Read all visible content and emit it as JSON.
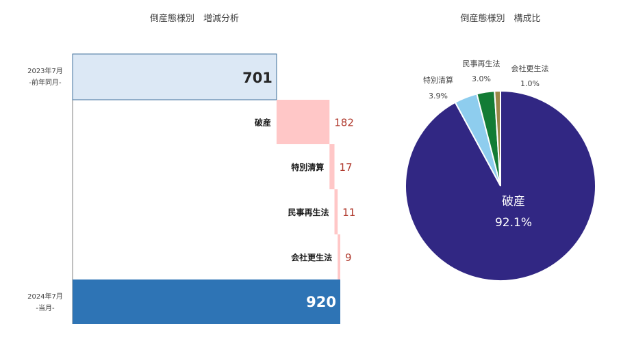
{
  "chart_data": [
    {
      "type": "bar",
      "title": "倒産態様別　増減分析",
      "start": {
        "label_line1": "2023年7月",
        "label_line2": "-前年同月-",
        "value": 701,
        "color": "#dce8f5"
      },
      "steps": [
        {
          "category": "破産",
          "value": 182
        },
        {
          "category": "特別清算",
          "value": 17
        },
        {
          "category": "民事再生法",
          "value": 11
        },
        {
          "category": "会社更生法",
          "value": 9
        }
      ],
      "end": {
        "label_line1": "2024年7月",
        "label_line2": "-当月-",
        "value": 920,
        "color": "#2e74b5"
      },
      "step_color": "#ffc7c7",
      "delta_color": "#b03a2e"
    },
    {
      "type": "pie",
      "title": "倒産態様別　構成比",
      "slices": [
        {
          "name": "破産",
          "value": 92.1,
          "label": "92.1%",
          "color": "#312783"
        },
        {
          "name": "特別清算",
          "value": 3.9,
          "label": "3.9%",
          "color": "#8ecdee"
        },
        {
          "name": "民事再生法",
          "value": 3.0,
          "label": "3.0%",
          "color": "#137c35"
        },
        {
          "name": "会社更生法",
          "value": 1.0,
          "label": "1.0%",
          "color": "#9a8747"
        }
      ]
    }
  ]
}
